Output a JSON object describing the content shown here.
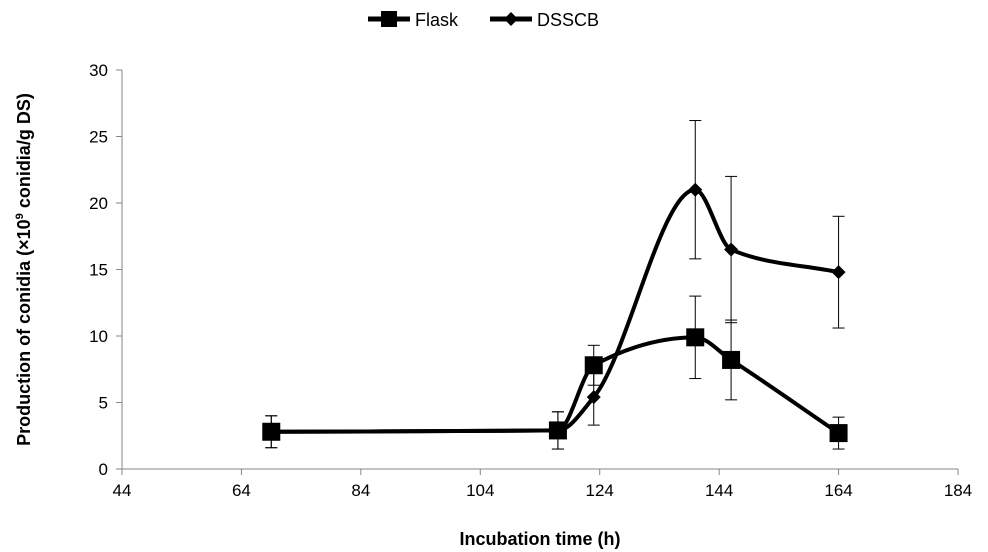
{
  "chart_data": {
    "type": "line",
    "title": "",
    "xlabel": "Incubation time (h)",
    "ylabel": "Production of conidia (×10",
    "ylabel_sup": "9",
    "ylabel_tail": " conidia/g DS)",
    "xlim": [
      44,
      184
    ],
    "ylim": [
      0,
      30
    ],
    "xticks": [
      44,
      64,
      84,
      104,
      124,
      144,
      164,
      184
    ],
    "yticks": [
      0,
      5,
      10,
      15,
      20,
      25,
      30
    ],
    "grid": false,
    "legend_position": "top-center",
    "smoothed": true,
    "series": [
      {
        "name": "Flask",
        "marker": "square",
        "color": "#000000",
        "points": [
          {
            "x": 69,
            "y": 2.8,
            "err": 1.2
          },
          {
            "x": 117,
            "y": 2.9,
            "err": 1.4
          },
          {
            "x": 123,
            "y": 7.8,
            "err": 1.5
          },
          {
            "x": 140,
            "y": 9.9,
            "err": 3.1
          },
          {
            "x": 146,
            "y": 8.2,
            "err": 3.0
          },
          {
            "x": 164,
            "y": 2.7,
            "err": 1.2
          }
        ]
      },
      {
        "name": "DSSCB",
        "marker": "diamond",
        "color": "#000000",
        "points": [
          {
            "x": 69,
            "y": 2.8,
            "err": 1.2
          },
          {
            "x": 117,
            "y": 2.9,
            "err": 1.4
          },
          {
            "x": 123,
            "y": 5.4,
            "err": 2.1
          },
          {
            "x": 140,
            "y": 21.0,
            "err": 5.2
          },
          {
            "x": 146,
            "y": 16.5,
            "err": 5.5
          },
          {
            "x": 164,
            "y": 14.8,
            "err": 4.2
          }
        ]
      }
    ]
  }
}
